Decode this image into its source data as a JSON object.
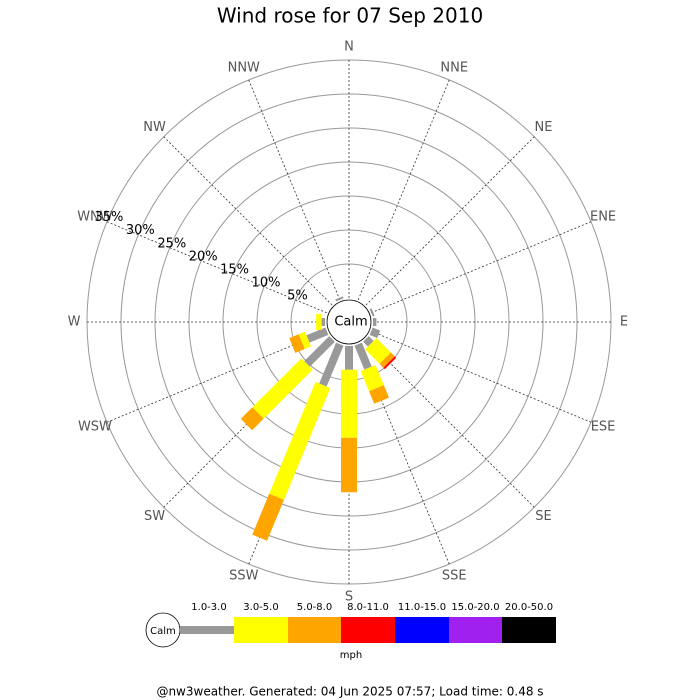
{
  "chart_data": {
    "type": "windrose",
    "title": "Wind rose for 07 Sep 2010",
    "categories": [
      "N",
      "NNE",
      "NE",
      "ENE",
      "E",
      "ESE",
      "SE",
      "SSE",
      "S",
      "SSW",
      "SW",
      "WSW",
      "W",
      "WNW",
      "NW",
      "NNW"
    ],
    "center_label": "Calm",
    "rlim": [
      0,
      35
    ],
    "rticks": [
      {
        "value": 5,
        "label": "5%"
      },
      {
        "value": 10,
        "label": "10%"
      },
      {
        "value": 15,
        "label": "15%"
      },
      {
        "value": 20,
        "label": "20%"
      },
      {
        "value": 25,
        "label": "25%"
      },
      {
        "value": 30,
        "label": "30%"
      },
      {
        "value": 35,
        "label": "35%"
      }
    ],
    "series": [
      {
        "name": "1.0-3.0",
        "color": "#999999",
        "values": [
          0,
          0,
          0,
          0.3,
          0.5,
          1.2,
          1,
          3.8,
          3.5,
          6.5,
          5.2,
          3,
          0.5,
          0,
          0,
          0.3
        ]
      },
      {
        "name": "3.0-5.0",
        "color": "#ffff00",
        "values": [
          0,
          0,
          0,
          0,
          0,
          0,
          3,
          3.2,
          10,
          17.8,
          10.2,
          1,
          0.8,
          0,
          0,
          0
        ]
      },
      {
        "name": "5.0-8.0",
        "color": "#ffa500",
        "values": [
          0,
          0,
          0,
          0,
          0,
          0,
          0.8,
          2,
          8,
          6.5,
          2.4,
          1.5,
          0,
          0,
          0,
          0
        ]
      },
      {
        "name": "8.0-11.0",
        "color": "#ff0000",
        "values": [
          0,
          0,
          0,
          0,
          0,
          0,
          0.3,
          0,
          0,
          0,
          0,
          0,
          0,
          0,
          0,
          0
        ]
      },
      {
        "name": "11.0-15.0",
        "color": "#0000ff",
        "values": [
          0,
          0,
          0,
          0,
          0,
          0,
          0,
          0,
          0,
          0,
          0,
          0,
          0,
          0,
          0,
          0
        ]
      },
      {
        "name": "15.0-20.0",
        "color": "#a020f0",
        "values": [
          0,
          0,
          0,
          0,
          0,
          0,
          0,
          0,
          0,
          0,
          0,
          0,
          0,
          0,
          0,
          0
        ]
      },
      {
        "name": "20.0-50.0",
        "color": "#000000",
        "values": [
          0,
          0,
          0,
          0,
          0,
          0,
          0,
          0,
          0,
          0,
          0,
          0,
          0,
          0,
          0,
          0
        ]
      }
    ],
    "legend_unit": "mph",
    "footer": "@nw3weather. Generated: 04 Jun 2025 07:57; Load time: 0.48 s"
  }
}
